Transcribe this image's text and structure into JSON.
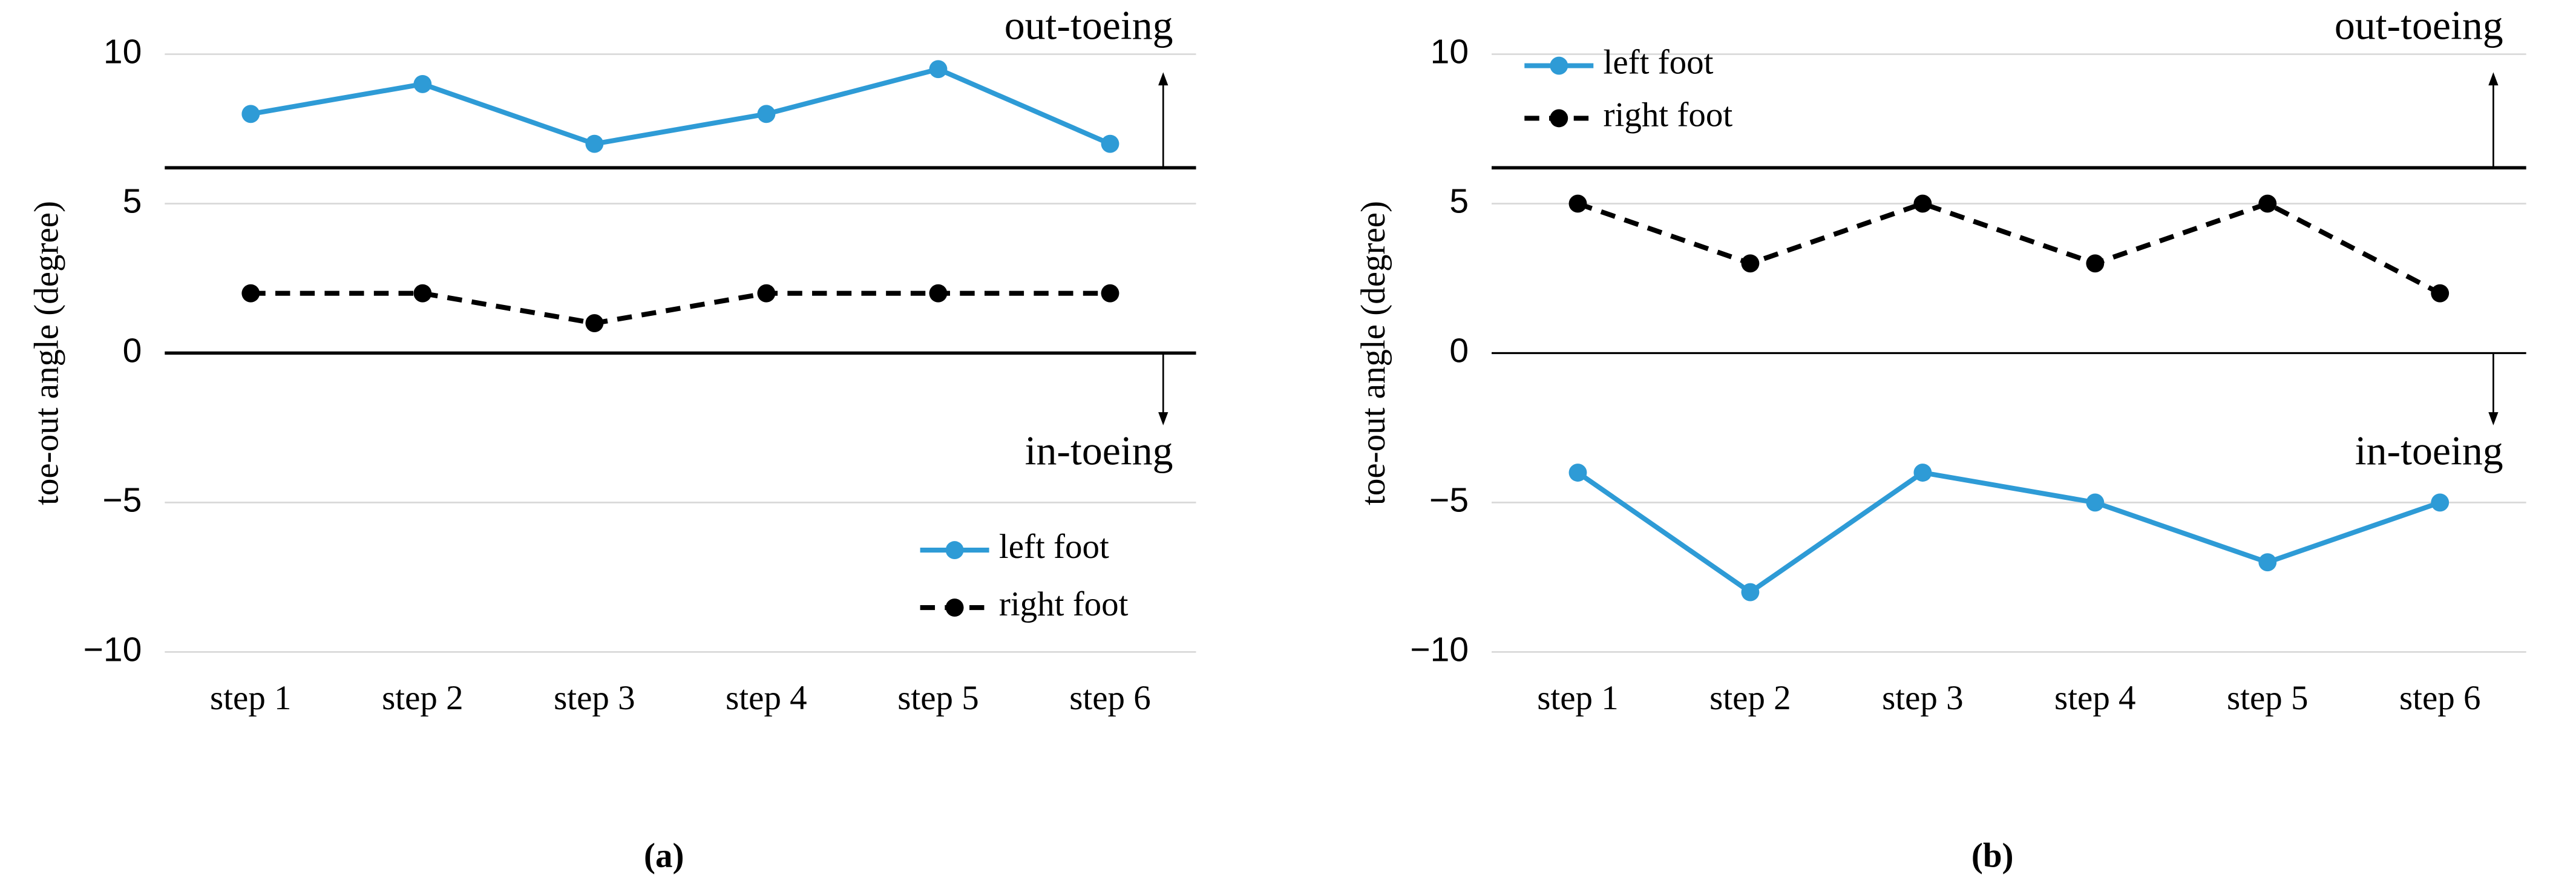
{
  "chart_data": [
    {
      "type": "line",
      "label": "(a)",
      "ylabel": "toe-out angle (degree)",
      "categories": [
        "step 1",
        "step 2",
        "step 3",
        "step 4",
        "step 5",
        "step 6"
      ],
      "series": [
        {
          "name": "left foot",
          "color": "#2e9bd6",
          "dash": false,
          "values": [
            8,
            9,
            7,
            8,
            9.5,
            7
          ]
        },
        {
          "name": "right foot",
          "color": "#000000",
          "dash": true,
          "values": [
            2,
            2,
            1,
            2,
            2,
            2
          ]
        }
      ],
      "ylim": [
        -10,
        10
      ],
      "yticks": [
        {
          "value": -10,
          "label": "−10"
        },
        {
          "value": -5,
          "label": "−5"
        },
        0,
        5,
        10
      ],
      "threshold": 6.2,
      "upper_annotation": "out-toeing",
      "lower_annotation": "in-toeing",
      "grid": true,
      "legend": "lower right"
    },
    {
      "type": "line",
      "label": "(b)",
      "ylabel": "toe-out angle (degree)",
      "categories": [
        "step 1",
        "step 2",
        "step 3",
        "step 4",
        "step 5",
        "step 6"
      ],
      "series": [
        {
          "name": "left foot",
          "color": "#2e9bd6",
          "dash": false,
          "values": [
            -4,
            -8,
            -4,
            -5,
            -7,
            -5
          ]
        },
        {
          "name": "right foot",
          "color": "#000000",
          "dash": true,
          "values": [
            5,
            3,
            5,
            3,
            5,
            2
          ]
        }
      ],
      "ylim": [
        -10,
        10
      ],
      "yticks": [
        {
          "value": -10,
          "label": "−10"
        },
        {
          "value": -5,
          "label": "−5"
        },
        0,
        5,
        10
      ],
      "threshold": 6.2,
      "upper_annotation": "out-toeing",
      "lower_annotation": "in-toeing",
      "grid": true,
      "legend": "upper left"
    }
  ]
}
